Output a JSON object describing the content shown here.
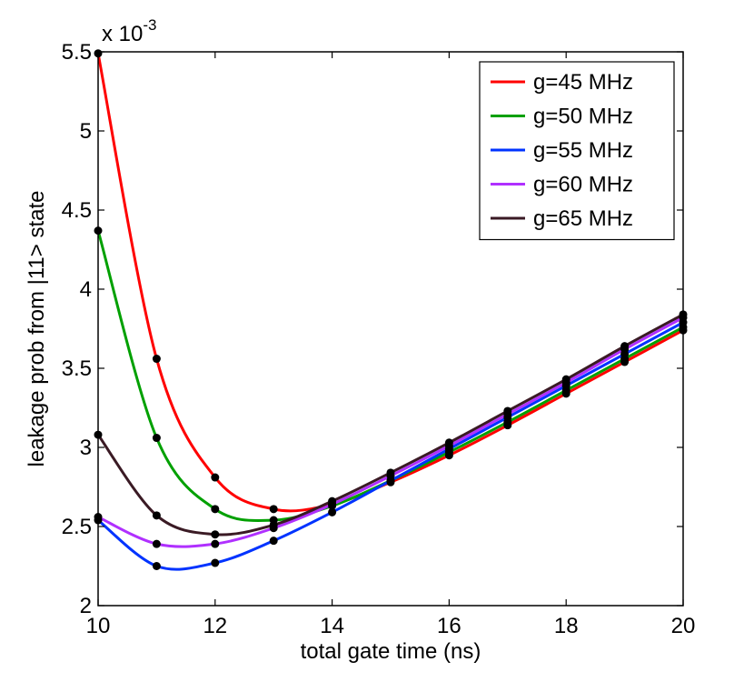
{
  "chart_data": {
    "type": "line",
    "xlabel": "total gate time (ns)",
    "ylabel": "leakage prob from |11> state",
    "y_multiplier": "x 10",
    "y_exponent": "-3",
    "xlim": [
      10,
      20
    ],
    "ylim": [
      2.0,
      5.5
    ],
    "xticks": [
      "10",
      "12",
      "14",
      "16",
      "18",
      "20"
    ],
    "yticks": [
      "2",
      "2.5",
      "3",
      "3.5",
      "4",
      "4.5",
      "5",
      "5.5"
    ],
    "grid": false,
    "legend_position": "top-right",
    "x": [
      10,
      11,
      12,
      13,
      14,
      15,
      16,
      17,
      18,
      19,
      20
    ],
    "series": [
      {
        "name": "g=45 MHz",
        "color": "#ff0000",
        "values": [
          5.49,
          3.56,
          2.81,
          2.61,
          2.64,
          2.78,
          2.95,
          3.14,
          3.34,
          3.54,
          3.74
        ]
      },
      {
        "name": "g=50 MHz",
        "color": "#00a000",
        "values": [
          4.37,
          3.06,
          2.61,
          2.54,
          2.63,
          2.79,
          2.97,
          3.16,
          3.36,
          3.56,
          3.76
        ]
      },
      {
        "name": "g=55 MHz",
        "color": "#0033ff",
        "values": [
          2.54,
          2.25,
          2.27,
          2.41,
          2.59,
          2.79,
          2.99,
          3.19,
          3.39,
          3.59,
          3.79
        ]
      },
      {
        "name": "g=60 MHz",
        "color": "#b030ff",
        "values": [
          2.56,
          2.39,
          2.39,
          2.49,
          2.64,
          2.82,
          3.01,
          3.21,
          3.41,
          3.62,
          3.82
        ]
      },
      {
        "name": "g=65 MHz",
        "color": "#3a1a24",
        "values": [
          3.08,
          2.57,
          2.45,
          2.51,
          2.66,
          2.84,
          3.03,
          3.23,
          3.43,
          3.64,
          3.84
        ]
      }
    ]
  }
}
